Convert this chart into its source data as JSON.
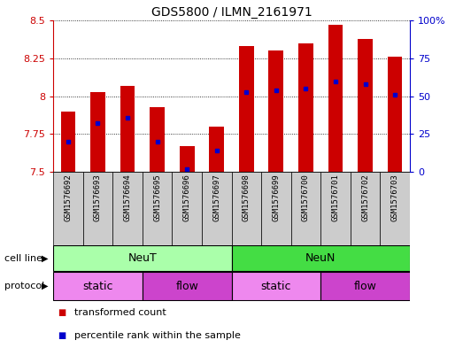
{
  "title": "GDS5800 / ILMN_2161971",
  "samples": [
    "GSM1576692",
    "GSM1576693",
    "GSM1576694",
    "GSM1576695",
    "GSM1576696",
    "GSM1576697",
    "GSM1576698",
    "GSM1576699",
    "GSM1576700",
    "GSM1576701",
    "GSM1576702",
    "GSM1576703"
  ],
  "bar_bottoms": [
    7.5,
    7.5,
    7.5,
    7.5,
    7.5,
    7.5,
    7.5,
    7.5,
    7.5,
    7.5,
    7.5,
    7.5
  ],
  "bar_tops": [
    7.9,
    8.03,
    8.07,
    7.93,
    7.67,
    7.8,
    8.33,
    8.3,
    8.35,
    8.47,
    8.38,
    8.26
  ],
  "percentile_values": [
    7.7,
    7.82,
    7.86,
    7.7,
    7.52,
    7.64,
    8.03,
    8.04,
    8.05,
    8.1,
    8.08,
    8.01
  ],
  "bar_color": "#cc0000",
  "percentile_color": "#0000cc",
  "ylim_left": [
    7.5,
    8.5
  ],
  "ylim_right": [
    0,
    100
  ],
  "yticks_left": [
    7.5,
    7.75,
    8.0,
    8.25,
    8.5
  ],
  "ytick_labels_left": [
    "7.5",
    "7.75",
    "8",
    "8.25",
    "8.5"
  ],
  "yticks_right": [
    0,
    25,
    50,
    75,
    100
  ],
  "ytick_labels_right": [
    "0",
    "25",
    "50",
    "75",
    "100%"
  ],
  "cell_line_groups": [
    {
      "label": "NeuT",
      "start": 0,
      "end": 6,
      "color": "#aaffaa"
    },
    {
      "label": "NeuN",
      "start": 6,
      "end": 12,
      "color": "#44dd44"
    }
  ],
  "protocol_groups": [
    {
      "label": "static",
      "start": 0,
      "end": 3,
      "color": "#ee88ee"
    },
    {
      "label": "flow",
      "start": 3,
      "end": 6,
      "color": "#cc44cc"
    },
    {
      "label": "static",
      "start": 6,
      "end": 9,
      "color": "#ee88ee"
    },
    {
      "label": "flow",
      "start": 9,
      "end": 12,
      "color": "#cc44cc"
    }
  ],
  "legend_items": [
    {
      "label": "transformed count",
      "color": "#cc0000"
    },
    {
      "label": "percentile rank within the sample",
      "color": "#0000cc"
    }
  ],
  "cell_line_label": "cell line",
  "protocol_label": "protocol",
  "bg_color": "#ffffff",
  "left_tick_color": "#cc0000",
  "right_tick_color": "#0000cc",
  "xtick_bg_color": "#cccccc",
  "border_color": "#000000"
}
